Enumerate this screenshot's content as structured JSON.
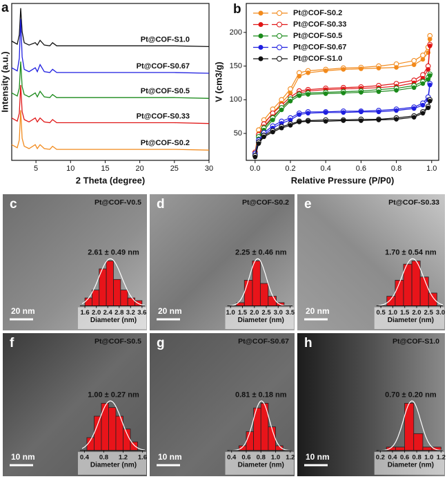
{
  "chart_data": [
    {
      "label": "a",
      "type": "line",
      "xlabel": "2 Theta (degree)",
      "ylabel": "Intensity (a.u.)",
      "x": [
        1.5,
        2.3,
        2.6,
        2.8,
        3.0,
        3.3,
        4.0,
        4.9,
        5.2,
        5.6,
        6.2,
        7.0,
        7.4,
        8.0,
        10,
        15,
        20,
        25,
        30
      ],
      "xlim": [
        1.5,
        30
      ],
      "xticks": [
        5,
        10,
        15,
        20,
        25,
        30
      ],
      "ylim": [
        0,
        100
      ],
      "series": [
        {
          "name": "Pt@COF-S1.0",
          "color": "#111111",
          "values": [
            76,
            74,
            80,
            97,
            82,
            75,
            73.5,
            75,
            73.5,
            76.5,
            73.5,
            73,
            75,
            73,
            73,
            73,
            73,
            73,
            72.5
          ]
        },
        {
          "name": "Pt@COF-S0.67",
          "color": "#1f1fe0",
          "values": [
            59,
            57,
            65,
            90,
            66,
            58,
            56.5,
            59,
            56.5,
            61,
            56.5,
            56,
            58,
            56,
            56,
            56,
            56,
            56,
            55.5
          ]
        },
        {
          "name": "Pt@COF-S0.5",
          "color": "#1a8a1a",
          "values": [
            43,
            41,
            46,
            63,
            47,
            42,
            40.5,
            43,
            40.5,
            44,
            40.5,
            40,
            42,
            40,
            40,
            40,
            40,
            40,
            39.5
          ]
        },
        {
          "name": "Pt@COF-S0.33",
          "color": "#e01515",
          "values": [
            27,
            25,
            30,
            48,
            31,
            26,
            24.5,
            27,
            24.5,
            27,
            24.5,
            24,
            26,
            24,
            24,
            24,
            24,
            24,
            23.5
          ]
        },
        {
          "name": "Pt@COF-S0.2",
          "color": "#f28a1c",
          "values": [
            10,
            8,
            13,
            32,
            14,
            9,
            7.5,
            10,
            7.5,
            10,
            7.5,
            7,
            9,
            7,
            7,
            7,
            7,
            7,
            6.5
          ]
        }
      ]
    },
    {
      "label": "b",
      "type": "isotherm",
      "xlabel": "Relative Pressure (P/P0)",
      "ylabel": "V (cm3/g)",
      "x": [
        0.0,
        0.02,
        0.05,
        0.1,
        0.15,
        0.2,
        0.25,
        0.3,
        0.4,
        0.5,
        0.6,
        0.7,
        0.8,
        0.9,
        0.95,
        0.98,
        0.99
      ],
      "xlim": [
        -0.05,
        1.04
      ],
      "xticks": [
        {
          "value": 0,
          "label": "0.0"
        },
        0.2,
        0.4,
        0.6,
        0.8,
        {
          "value": 1,
          "label": "1.0"
        }
      ],
      "ylim": [
        10,
        243
      ],
      "yticks": [
        50,
        100,
        150,
        200
      ],
      "legend": "upper left",
      "series": [
        {
          "name": "Pt@COF-S0.2",
          "color": "#f28a1c",
          "values": [
            20,
            50,
            65,
            80,
            95,
            110,
            135,
            140,
            143,
            145,
            146,
            147,
            148,
            152,
            160,
            170,
            190
          ],
          "desorption": [
            22,
            55,
            70,
            86,
            100,
            116,
            140,
            143,
            145,
            147,
            148,
            150,
            153,
            158,
            166,
            178,
            195
          ]
        },
        {
          "name": "Pt@COF-S0.33",
          "color": "#e01515",
          "values": [
            20,
            45,
            60,
            75,
            88,
            100,
            110,
            113,
            115,
            116,
            117,
            118,
            120,
            125,
            132,
            145,
            180
          ],
          "desorption": [
            22,
            48,
            64,
            80,
            92,
            104,
            113,
            115,
            117,
            118,
            119,
            121,
            124,
            129,
            137,
            150,
            182
          ]
        },
        {
          "name": "Pt@COF-S0.5",
          "color": "#1a8a1a",
          "values": [
            18,
            42,
            55,
            70,
            85,
            98,
            106,
            108,
            109,
            110,
            111,
            112,
            114,
            118,
            124,
            130,
            136
          ],
          "desorption": [
            20,
            45,
            58,
            73,
            88,
            101,
            108,
            110,
            111,
            112,
            113,
            115,
            117,
            121,
            127,
            133,
            138
          ]
        },
        {
          "name": "Pt@COF-S0.67",
          "color": "#1f1fe0",
          "values": [
            18,
            38,
            48,
            58,
            65,
            70,
            78,
            80,
            81,
            81,
            82,
            82,
            84,
            87,
            92,
            100,
            122
          ],
          "desorption": [
            20,
            40,
            51,
            61,
            68,
            73,
            80,
            82,
            82,
            83,
            83,
            84,
            86,
            89,
            95,
            104,
            124
          ]
        },
        {
          "name": "Pt@COF-S1.0",
          "color": "#111111",
          "values": [
            15,
            35,
            45,
            52,
            58,
            62,
            67,
            68,
            68,
            69,
            69,
            70,
            71,
            74,
            80,
            88,
            98
          ],
          "desorption": [
            17,
            37,
            47,
            54,
            60,
            64,
            68,
            69,
            70,
            70,
            71,
            71,
            73,
            76,
            82,
            90,
            100
          ]
        }
      ]
    },
    {
      "label": "c",
      "type": "histogram",
      "title": "Pt@COF-V0.5",
      "annotation": "2.61 ± 0.49 nm",
      "scale_bar": "20 nm",
      "xlabel": "Diameter (nm)",
      "color": "#e8141a",
      "bins": [
        1.6,
        1.85,
        2.1,
        2.35,
        2.6,
        2.85,
        3.1,
        3.35,
        3.6
      ],
      "counts": [
        3,
        6,
        14,
        17,
        10,
        6,
        3,
        2
      ],
      "xlim": [
        1.5,
        3.7
      ],
      "xticks": [
        1.6,
        {
          "value": 2,
          "label": "2.0"
        },
        2.4,
        2.8,
        3.2,
        3.6
      ]
    },
    {
      "label": "d",
      "type": "histogram",
      "title": "Pt@COF-S0.2",
      "annotation": "2.25 ± 0.46 nm",
      "scale_bar": "20 nm",
      "xlabel": "Diameter (nm)",
      "color": "#e8141a",
      "bins": [
        1.25,
        1.58,
        1.92,
        2.25,
        2.58,
        2.92,
        3.25
      ],
      "counts": [
        1,
        8,
        14,
        7,
        3,
        1
      ],
      "xlim": [
        0.95,
        3.6
      ],
      "xticks": [
        {
          "value": 1,
          "label": "1.0"
        },
        1.5,
        {
          "value": 2,
          "label": "2.0"
        },
        2.5,
        {
          "value": 3,
          "label": "3.0"
        },
        3.5
      ]
    },
    {
      "label": "e",
      "type": "histogram",
      "title": "Pt@COF-S0.33",
      "annotation": "1.70 ± 0.54 nm",
      "scale_bar": "20 nm",
      "xlabel": "Diameter (nm)",
      "color": "#e8141a",
      "bins": [
        0.75,
        1.1,
        1.45,
        1.8,
        2.15,
        2.5,
        2.85
      ],
      "counts": [
        3,
        8,
        13,
        14,
        9,
        4
      ],
      "xlim": [
        0.4,
        3.1
      ],
      "xticks": [
        0.5,
        {
          "value": 1,
          "label": "1.0"
        },
        1.5,
        {
          "value": 2,
          "label": "2.0"
        },
        2.5,
        {
          "value": 3,
          "label": "3.0"
        }
      ]
    },
    {
      "label": "f",
      "type": "histogram",
      "title": "Pt@COF-S0.5",
      "annotation": "1.00 ± 0.27 nm",
      "scale_bar": "10 nm",
      "xlabel": "Diameter (nm)",
      "color": "#e8141a",
      "bins": [
        0.45,
        0.6,
        0.75,
        0.9,
        1.05,
        1.2,
        1.35,
        1.5
      ],
      "counts": [
        3,
        8,
        11,
        10,
        8,
        5,
        2
      ],
      "xlim": [
        0.35,
        1.65
      ],
      "xticks": [
        0.4,
        0.8,
        1.2,
        1.6
      ]
    },
    {
      "label": "g",
      "type": "histogram",
      "title": "Pt@COF-S0.67",
      "annotation": "0.81 ± 0.18 nm",
      "scale_bar": "10 nm",
      "xlabel": "Diameter (nm)",
      "color": "#e8141a",
      "bins": [
        0.5,
        0.6,
        0.7,
        0.8,
        0.9,
        1.0,
        1.1
      ],
      "counts": [
        1,
        4,
        9,
        10,
        5,
        1
      ],
      "xlim": [
        0.37,
        1.23
      ],
      "xticks": [
        0.4,
        0.6,
        0.8,
        {
          "value": 1,
          "label": "1.0"
        },
        1.2
      ]
    },
    {
      "label": "h",
      "type": "histogram",
      "title": "Pt@COF-S1.0",
      "annotation": "0.70 ± 0.20 nm",
      "scale_bar": "10 nm",
      "xlabel": "Diameter (nm)",
      "color": "#e8141a",
      "bins": [
        0.3,
        0.45,
        0.6,
        0.75,
        0.9,
        1.05,
        1.2
      ],
      "counts": [
        1,
        1,
        14,
        5,
        1,
        1
      ],
      "xlim": [
        0.17,
        1.23
      ],
      "xticks": [
        0.2,
        0.4,
        0.6,
        0.8,
        {
          "value": 1,
          "label": "1.0"
        },
        1.2
      ]
    }
  ]
}
